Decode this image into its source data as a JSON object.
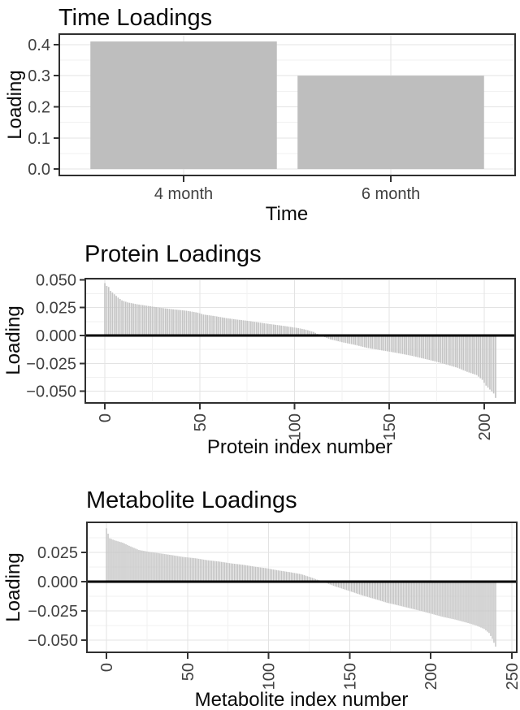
{
  "style": {
    "background": "#ffffff",
    "bar_fill": "#bebebe",
    "series_bar_fill": "#c4c4c4",
    "grid_major": "#e3e3e3",
    "grid_minor": "#f1f1f1",
    "panel_border": "#2f2f2f",
    "tick_mark": "#333333",
    "tick_text": "#404040",
    "title_text": "#0a0a0a",
    "zero_line": "#000000"
  },
  "chart_data": [
    {
      "id": "time",
      "type": "bar",
      "title": "Time Loadings",
      "x_label": "Time",
      "y_label": "Loading",
      "categories": [
        "4 month",
        "6 month"
      ],
      "values": [
        0.41,
        0.3
      ],
      "ylim": [
        -0.0207,
        0.4337
      ],
      "y_ticks": [
        {
          "v": 0.0,
          "label": "0.0"
        },
        {
          "v": 0.1,
          "label": "0.1"
        },
        {
          "v": 0.2,
          "label": "0.2"
        },
        {
          "v": 0.3,
          "label": "0.3"
        },
        {
          "v": 0.4,
          "label": "0.4"
        }
      ],
      "y_minor": [
        0.05,
        0.15,
        0.25,
        0.35
      ],
      "grid": true,
      "legend": "none"
    },
    {
      "id": "protein",
      "type": "bar",
      "title": "Protein Loadings",
      "x_label": "Protein index number",
      "y_label": "Loading",
      "n_bars": 207,
      "xlim": [
        -10.3,
        216.3
      ],
      "ylim": [
        -0.0605,
        0.051
      ],
      "x_ticks": [
        {
          "v": 0,
          "label": "0"
        },
        {
          "v": 50,
          "label": "50"
        },
        {
          "v": 100,
          "label": "100"
        },
        {
          "v": 150,
          "label": "150"
        },
        {
          "v": 200,
          "label": "200"
        }
      ],
      "x_minor": [
        25,
        75,
        125,
        175
      ],
      "y_ticks": [
        {
          "v": 0.05,
          "label": "0.050"
        },
        {
          "v": 0.025,
          "label": "0.025"
        },
        {
          "v": 0.0,
          "label": "0.000"
        },
        {
          "v": -0.025,
          "label": "−0.025"
        },
        {
          "v": -0.05,
          "label": "−0.050"
        }
      ],
      "y_minor": [
        0.0375,
        0.0125,
        -0.0125,
        -0.0375
      ],
      "zero_line": true,
      "x_label_rotation": 90,
      "grid": true,
      "legend": "none",
      "envelope_points": [
        [
          0,
          0.047
        ],
        [
          1,
          0.0445
        ],
        [
          2,
          0.0435
        ],
        [
          3,
          0.04
        ],
        [
          5,
          0.037
        ],
        [
          7,
          0.034
        ],
        [
          9,
          0.0315
        ],
        [
          12,
          0.0297
        ],
        [
          17,
          0.028
        ],
        [
          24,
          0.0262
        ],
        [
          30,
          0.0247
        ],
        [
          36,
          0.0235
        ],
        [
          43,
          0.0222
        ],
        [
          49,
          0.0205
        ],
        [
          52,
          0.0188
        ],
        [
          58,
          0.0174
        ],
        [
          64,
          0.0156
        ],
        [
          70,
          0.0142
        ],
        [
          77,
          0.0128
        ],
        [
          83,
          0.0112
        ],
        [
          89,
          0.0098
        ],
        [
          96,
          0.0082
        ],
        [
          102,
          0.0066
        ],
        [
          106,
          0.0052
        ],
        [
          110,
          0.0032
        ],
        [
          113,
          0.0005
        ],
        [
          115,
          -0.0008
        ],
        [
          119,
          -0.0035
        ],
        [
          125,
          -0.006
        ],
        [
          132,
          -0.0085
        ],
        [
          138,
          -0.011
        ],
        [
          144,
          -0.0128
        ],
        [
          150,
          -0.0145
        ],
        [
          156,
          -0.0163
        ],
        [
          162,
          -0.0183
        ],
        [
          168,
          -0.0207
        ],
        [
          174,
          -0.0232
        ],
        [
          180,
          -0.026
        ],
        [
          186,
          -0.029
        ],
        [
          191,
          -0.0326
        ],
        [
          196,
          -0.0355
        ],
        [
          199,
          -0.0398
        ],
        [
          201,
          -0.045
        ],
        [
          203,
          -0.0485
        ],
        [
          205,
          -0.052
        ],
        [
          206,
          -0.056
        ]
      ]
    },
    {
      "id": "metabolite",
      "type": "bar",
      "title": "Metabolite Loadings",
      "x_label": "Metabolite index number",
      "y_label": "Loading",
      "n_bars": 241,
      "xlim": [
        -12.05,
        253.05
      ],
      "ylim": [
        -0.0605,
        0.0509
      ],
      "x_ticks": [
        {
          "v": 0,
          "label": "0"
        },
        {
          "v": 50,
          "label": "50"
        },
        {
          "v": 100,
          "label": "100"
        },
        {
          "v": 150,
          "label": "150"
        },
        {
          "v": 200,
          "label": "200"
        },
        {
          "v": 250,
          "label": "250"
        }
      ],
      "x_minor": [
        25,
        75,
        125,
        175,
        225
      ],
      "y_ticks": [
        {
          "v": 0.025,
          "label": "0.025"
        },
        {
          "v": 0.0,
          "label": "0.000"
        },
        {
          "v": -0.025,
          "label": "−0.025"
        },
        {
          "v": -0.05,
          "label": "−0.050"
        }
      ],
      "y_minor": [
        0.0375,
        0.0125,
        -0.0125,
        -0.0375
      ],
      "zero_line": true,
      "x_label_rotation": 90,
      "grid": true,
      "legend": "none",
      "envelope_points": [
        [
          0,
          0.0458
        ],
        [
          1,
          0.0412
        ],
        [
          2,
          0.0372
        ],
        [
          5,
          0.0355
        ],
        [
          10,
          0.0335
        ],
        [
          14,
          0.0308
        ],
        [
          20,
          0.0272
        ],
        [
          26,
          0.0257
        ],
        [
          33,
          0.0243
        ],
        [
          40,
          0.0229
        ],
        [
          47,
          0.0213
        ],
        [
          55,
          0.0201
        ],
        [
          62,
          0.0185
        ],
        [
          69,
          0.0174
        ],
        [
          77,
          0.0157
        ],
        [
          84,
          0.0146
        ],
        [
          92,
          0.0128
        ],
        [
          99,
          0.0115
        ],
        [
          106,
          0.0097
        ],
        [
          114,
          0.008
        ],
        [
          120,
          0.0065
        ],
        [
          126,
          0.0038
        ],
        [
          130,
          0.0018
        ],
        [
          134,
          0.0002
        ],
        [
          137,
          -0.0018
        ],
        [
          141,
          -0.004
        ],
        [
          146,
          -0.0062
        ],
        [
          151,
          -0.0085
        ],
        [
          158,
          -0.0118
        ],
        [
          166,
          -0.015
        ],
        [
          173,
          -0.018
        ],
        [
          178,
          -0.0196
        ],
        [
          185,
          -0.022
        ],
        [
          193,
          -0.0247
        ],
        [
          200,
          -0.0273
        ],
        [
          207,
          -0.03
        ],
        [
          215,
          -0.0324
        ],
        [
          222,
          -0.035
        ],
        [
          228,
          -0.0375
        ],
        [
          233,
          -0.0405
        ],
        [
          236,
          -0.044
        ],
        [
          238,
          -0.049
        ],
        [
          240,
          -0.0556
        ]
      ]
    }
  ]
}
